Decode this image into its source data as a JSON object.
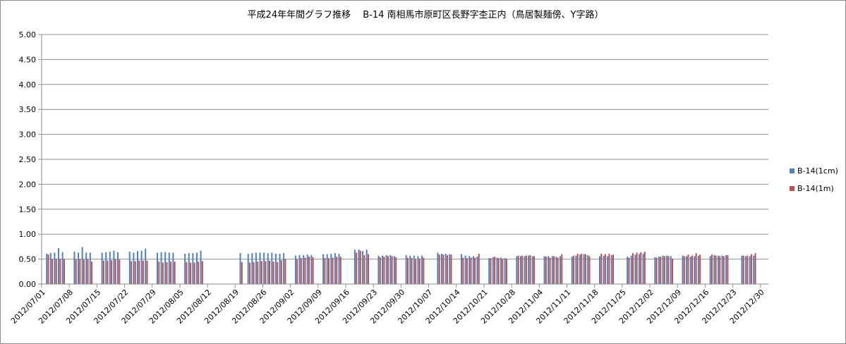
{
  "chart_data": {
    "type": "bar",
    "title": "平成24年年間グラフ推移　 B-14 南相馬市原町区長野字杢正内（鳥居製麺傍、Y字路）",
    "xlabel": "",
    "ylabel": "",
    "ylim": [
      0,
      5
    ],
    "yticks": [
      "5.00",
      "4.50",
      "4.00",
      "3.50",
      "3.00",
      "2.50",
      "2.00",
      "1.50",
      "1.00",
      "0.50",
      "0.00"
    ],
    "grid": true,
    "legend_position": "right",
    "x_start": "2012/07/01",
    "x_end": "2012/12/31",
    "xtick_labels": [
      "2012/07/01",
      "2012/07/08",
      "2012/07/15",
      "2012/07/22",
      "2012/07/29",
      "2012/08/05",
      "2012/08/12",
      "2012/08/19",
      "2012/08/26",
      "2012/09/02",
      "2012/09/09",
      "2012/09/16",
      "2012/09/23",
      "2012/09/30",
      "2012/10/07",
      "2012/10/14",
      "2012/10/21",
      "2012/10/28",
      "2012/11/04",
      "2012/11/11",
      "2012/11/18",
      "2012/11/25",
      "2012/12/02",
      "2012/12/09",
      "2012/12/16",
      "2012/12/23",
      "2012/12/30"
    ],
    "series": [
      {
        "name": "B-14(1cm)",
        "color": "#4f81bd",
        "x": [
          "2012/07/02",
          "2012/07/03",
          "2012/07/04",
          "2012/07/05",
          "2012/07/06",
          "2012/07/09",
          "2012/07/10",
          "2012/07/11",
          "2012/07/12",
          "2012/07/13",
          "2012/07/16",
          "2012/07/17",
          "2012/07/18",
          "2012/07/19",
          "2012/07/20",
          "2012/07/23",
          "2012/07/24",
          "2012/07/25",
          "2012/07/26",
          "2012/07/27",
          "2012/07/30",
          "2012/07/31",
          "2012/08/01",
          "2012/08/02",
          "2012/08/03",
          "2012/08/06",
          "2012/08/07",
          "2012/08/08",
          "2012/08/09",
          "2012/08/10",
          "2012/08/20",
          "2012/08/22",
          "2012/08/23",
          "2012/08/24",
          "2012/08/25",
          "2012/08/26",
          "2012/08/27",
          "2012/08/28",
          "2012/08/29",
          "2012/08/30",
          "2012/08/31",
          "2012/09/03",
          "2012/09/04",
          "2012/09/05",
          "2012/09/06",
          "2012/09/07",
          "2012/09/10",
          "2012/09/11",
          "2012/09/12",
          "2012/09/13",
          "2012/09/14",
          "2012/09/18",
          "2012/09/19",
          "2012/09/20",
          "2012/09/21",
          "2012/09/24",
          "2012/09/25",
          "2012/09/26",
          "2012/09/27",
          "2012/09/28",
          "2012/10/01",
          "2012/10/02",
          "2012/10/03",
          "2012/10/04",
          "2012/10/05",
          "2012/10/09",
          "2012/10/10",
          "2012/10/11",
          "2012/10/12",
          "2012/10/15",
          "2012/10/16",
          "2012/10/17",
          "2012/10/18",
          "2012/10/19",
          "2012/10/22",
          "2012/10/23",
          "2012/10/24",
          "2012/10/25",
          "2012/10/26",
          "2012/10/29",
          "2012/10/30",
          "2012/10/31",
          "2012/11/01",
          "2012/11/02",
          "2012/11/05",
          "2012/11/06",
          "2012/11/07",
          "2012/11/08",
          "2012/11/09",
          "2012/11/12",
          "2012/11/13",
          "2012/11/14",
          "2012/11/15",
          "2012/11/16",
          "2012/11/19",
          "2012/11/20",
          "2012/11/21",
          "2012/11/22",
          "2012/11/26",
          "2012/11/27",
          "2012/11/28",
          "2012/11/29",
          "2012/11/30",
          "2012/12/03",
          "2012/12/04",
          "2012/12/05",
          "2012/12/06",
          "2012/12/07",
          "2012/12/10",
          "2012/12/11",
          "2012/12/12",
          "2012/12/13",
          "2012/12/14",
          "2012/12/17",
          "2012/12/18",
          "2012/12/19",
          "2012/12/20",
          "2012/12/21",
          "2012/12/25",
          "2012/12/26",
          "2012/12/27",
          "2012/12/28"
        ],
        "values": [
          0.61,
          0.62,
          0.63,
          0.72,
          0.64,
          0.65,
          0.63,
          0.74,
          0.63,
          0.63,
          0.63,
          0.64,
          0.65,
          0.67,
          0.64,
          0.65,
          0.63,
          0.66,
          0.67,
          0.71,
          0.63,
          0.64,
          0.64,
          0.63,
          0.63,
          0.61,
          0.62,
          0.62,
          0.63,
          0.67,
          0.62,
          0.61,
          0.62,
          0.63,
          0.63,
          0.63,
          0.62,
          0.63,
          0.61,
          0.61,
          0.62,
          0.57,
          0.58,
          0.58,
          0.59,
          0.58,
          0.6,
          0.6,
          0.61,
          0.62,
          0.61,
          0.69,
          0.69,
          0.66,
          0.69,
          0.57,
          0.57,
          0.58,
          0.58,
          0.56,
          0.58,
          0.57,
          0.57,
          0.56,
          0.57,
          0.63,
          0.61,
          0.61,
          0.6,
          0.6,
          0.57,
          0.56,
          0.56,
          0.55,
          0.52,
          0.54,
          0.53,
          0.53,
          0.52,
          0.56,
          0.56,
          0.56,
          0.57,
          0.56,
          0.56,
          0.56,
          0.56,
          0.55,
          0.56,
          0.55,
          0.57,
          0.59,
          0.6,
          0.58,
          0.56,
          0.57,
          0.56,
          0.58,
          0.55,
          0.57,
          0.59,
          0.6,
          0.61,
          0.54,
          0.55,
          0.57,
          0.57,
          0.56,
          0.57,
          0.56,
          0.55,
          0.56,
          0.57,
          0.56,
          0.58,
          0.57,
          0.57,
          0.58,
          0.57,
          0.56,
          0.56,
          0.57
        ]
      },
      {
        "name": "B-14(1m)",
        "color": "#c0504d",
        "x": [
          "2012/07/02",
          "2012/07/03",
          "2012/07/04",
          "2012/07/05",
          "2012/07/06",
          "2012/07/09",
          "2012/07/10",
          "2012/07/11",
          "2012/07/12",
          "2012/07/13",
          "2012/07/16",
          "2012/07/17",
          "2012/07/18",
          "2012/07/19",
          "2012/07/20",
          "2012/07/23",
          "2012/07/24",
          "2012/07/25",
          "2012/07/26",
          "2012/07/27",
          "2012/07/30",
          "2012/07/31",
          "2012/08/01",
          "2012/08/02",
          "2012/08/03",
          "2012/08/06",
          "2012/08/07",
          "2012/08/08",
          "2012/08/09",
          "2012/08/10",
          "2012/08/20",
          "2012/08/22",
          "2012/08/23",
          "2012/08/24",
          "2012/08/25",
          "2012/08/26",
          "2012/08/27",
          "2012/08/28",
          "2012/08/29",
          "2012/08/30",
          "2012/08/31",
          "2012/09/03",
          "2012/09/04",
          "2012/09/05",
          "2012/09/06",
          "2012/09/07",
          "2012/09/10",
          "2012/09/11",
          "2012/09/12",
          "2012/09/13",
          "2012/09/14",
          "2012/09/18",
          "2012/09/19",
          "2012/09/20",
          "2012/09/21",
          "2012/09/24",
          "2012/09/25",
          "2012/09/26",
          "2012/09/27",
          "2012/09/28",
          "2012/10/01",
          "2012/10/02",
          "2012/10/03",
          "2012/10/04",
          "2012/10/05",
          "2012/10/09",
          "2012/10/10",
          "2012/10/11",
          "2012/10/12",
          "2012/10/15",
          "2012/10/16",
          "2012/10/17",
          "2012/10/18",
          "2012/10/19",
          "2012/10/22",
          "2012/10/23",
          "2012/10/24",
          "2012/10/25",
          "2012/10/26",
          "2012/10/29",
          "2012/10/30",
          "2012/10/31",
          "2012/11/01",
          "2012/11/02",
          "2012/11/05",
          "2012/11/06",
          "2012/11/07",
          "2012/11/08",
          "2012/11/09",
          "2012/11/12",
          "2012/11/13",
          "2012/11/14",
          "2012/11/15",
          "2012/11/16",
          "2012/11/19",
          "2012/11/20",
          "2012/11/21",
          "2012/11/22",
          "2012/11/26",
          "2012/11/27",
          "2012/11/28",
          "2012/11/29",
          "2012/11/30",
          "2012/12/03",
          "2012/12/04",
          "2012/12/05",
          "2012/12/06",
          "2012/12/07",
          "2012/12/10",
          "2012/12/11",
          "2012/12/12",
          "2012/12/13",
          "2012/12/14",
          "2012/12/17",
          "2012/12/18",
          "2012/12/19",
          "2012/12/20",
          "2012/12/21",
          "2012/12/25",
          "2012/12/26",
          "2012/12/27",
          "2012/12/28"
        ],
        "values": [
          0.59,
          0.5,
          0.5,
          0.51,
          0.5,
          0.5,
          0.5,
          0.49,
          0.5,
          0.45,
          0.47,
          0.47,
          0.48,
          0.5,
          0.49,
          0.46,
          0.46,
          0.47,
          0.47,
          0.47,
          0.45,
          0.43,
          0.44,
          0.45,
          0.45,
          0.44,
          0.43,
          0.43,
          0.45,
          0.46,
          0.44,
          0.43,
          0.44,
          0.45,
          0.46,
          0.46,
          0.47,
          0.45,
          0.44,
          0.48,
          0.5,
          0.5,
          0.52,
          0.53,
          0.55,
          0.54,
          0.52,
          0.52,
          0.53,
          0.55,
          0.55,
          0.63,
          0.67,
          0.58,
          0.6,
          0.54,
          0.55,
          0.56,
          0.56,
          0.54,
          0.53,
          0.52,
          0.5,
          0.51,
          0.53,
          0.59,
          0.59,
          0.58,
          0.59,
          0.53,
          0.52,
          0.53,
          0.53,
          0.61,
          0.52,
          0.55,
          0.52,
          0.51,
          0.51,
          0.57,
          0.57,
          0.57,
          0.58,
          0.56,
          0.55,
          0.53,
          0.56,
          0.53,
          0.6,
          0.57,
          0.61,
          0.61,
          0.6,
          0.56,
          0.61,
          0.6,
          0.61,
          0.59,
          0.53,
          0.62,
          0.63,
          0.64,
          0.65,
          0.53,
          0.55,
          0.56,
          0.56,
          0.51,
          0.56,
          0.59,
          0.57,
          0.62,
          0.59,
          0.59,
          0.57,
          0.56,
          0.56,
          0.58,
          0.57,
          0.57,
          0.6,
          0.62
        ]
      }
    ]
  }
}
